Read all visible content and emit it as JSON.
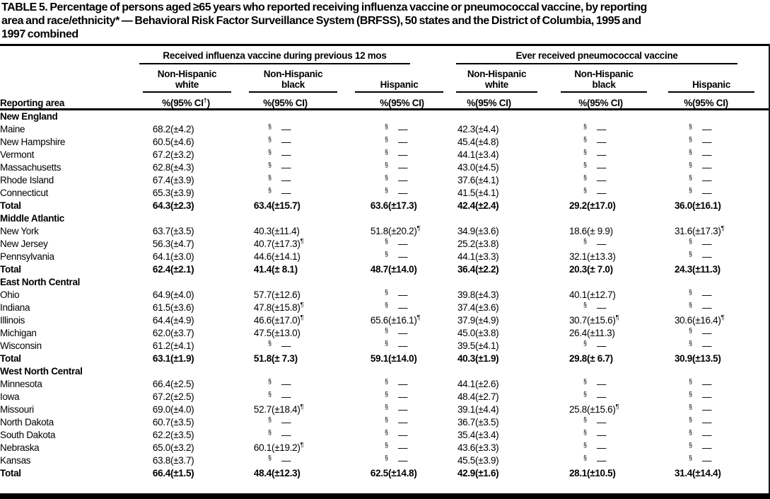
{
  "title_lines": [
    "TABLE 5. Percentage of persons aged ≥65 years who reported receiving influenza vaccine or pneumococcal vaccine, by reporting",
    "area and race/ethnicity* — Behavioral Risk Factor Surveillance System (BRFSS), 50 states and the District of Columbia, 1995 and",
    "1997 combined"
  ],
  "table": {
    "row_header": "Reporting area",
    "span_headers": [
      "Received influenza vaccine during previous 12 mos",
      "Ever received pneumococcal vaccine"
    ],
    "group_headers": [
      "Non-Hispanic\nwhite",
      "Non-Hispanic\nblack",
      "Hispanic",
      "Non-Hispanic\nwhite",
      "Non-Hispanic\nblack",
      "Hispanic"
    ],
    "col_headers": [
      "%",
      "(95% CI†)",
      "%",
      "(95% CI)",
      "%",
      "(95% CI)",
      "%",
      "(95% CI)",
      "%",
      "(95% CI)",
      "%",
      "(95% CI)"
    ],
    "sections": [
      {
        "name": "New England",
        "rows": [
          {
            "area": "Maine",
            "cells": [
              "68.2",
              "(±4.2)",
              "§",
              "—",
              "§",
              "—",
              "42.3",
              "(±4.4)",
              "§",
              "—",
              "§",
              "—"
            ]
          },
          {
            "area": "New Hampshire",
            "cells": [
              "60.5",
              "(±4.6)",
              "§",
              "—",
              "§",
              "—",
              "45.4",
              "(±4.8)",
              "§",
              "—",
              "§",
              "—"
            ]
          },
          {
            "area": "Vermont",
            "cells": [
              "67.2",
              "(±3.2)",
              "§",
              "—",
              "§",
              "—",
              "44.1",
              "(±3.4)",
              "§",
              "—",
              "§",
              "—"
            ]
          },
          {
            "area": "Massachusetts",
            "cells": [
              "62.8",
              "(±4.3)",
              "§",
              "—",
              "§",
              "—",
              "43.0",
              "(±4.5)",
              "§",
              "—",
              "§",
              "—"
            ]
          },
          {
            "area": "Rhode Island",
            "cells": [
              "67.4",
              "(±3.9)",
              "§",
              "—",
              "§",
              "—",
              "37.6",
              "(±4.1)",
              "§",
              "—",
              "§",
              "—"
            ]
          },
          {
            "area": "Connecticut",
            "cells": [
              "65.3",
              "(±3.9)",
              "§",
              "—",
              "§",
              "—",
              "41.5",
              "(±4.1)",
              "§",
              "—",
              "§",
              "—"
            ]
          }
        ],
        "total": {
          "label": "Total",
          "cells": [
            "64.3",
            "(±2.3)",
            "63.4",
            "(±15.7)",
            "63.6",
            "(±17.3)",
            "42.4",
            "(±2.4)",
            "29.2",
            "(±17.0)",
            "36.0",
            "(±16.1)"
          ]
        }
      },
      {
        "name": "Middle Atlantic",
        "rows": [
          {
            "area": "New York",
            "cells": [
              "63.7",
              "(±3.5)",
              "40.3",
              "(±11.4)",
              "51.8",
              "(±20.2)¶",
              "34.9",
              "(±3.6)",
              "18.6",
              "(± 9.9)",
              "31.6",
              "(±17.3)¶"
            ]
          },
          {
            "area": "New Jersey",
            "cells": [
              "56.3",
              "(±4.7)",
              "40.7",
              "(±17.3)¶",
              "§",
              "—",
              "25.2",
              "(±3.8)",
              "§",
              "—",
              "§",
              "—"
            ]
          },
          {
            "area": "Pennsylvania",
            "cells": [
              "64.1",
              "(±3.0)",
              "44.6",
              "(±14.1)",
              "§",
              "—",
              "44.1",
              "(±3.3)",
              "32.1",
              "(±13.3)",
              "§",
              "—"
            ]
          }
        ],
        "total": {
          "label": "Total",
          "cells": [
            "62.4",
            "(±2.1)",
            "41.4",
            "(± 8.1)",
            "48.7",
            "(±14.0)",
            "36.4",
            "(±2.2)",
            "20.3",
            "(± 7.0)",
            "24.3",
            "(±11.3)"
          ]
        }
      },
      {
        "name": "East North Central",
        "rows": [
          {
            "area": "Ohio",
            "cells": [
              "64.9",
              "(±4.0)",
              "57.7",
              "(±12.6)",
              "§",
              "—",
              "39.8",
              "(±4.3)",
              "40.1",
              "(±12.7)",
              "§",
              "—"
            ]
          },
          {
            "area": "Indiana",
            "cells": [
              "61.5",
              "(±3.6)",
              "47.8",
              "(±15.8)¶",
              "§",
              "—",
              "37.4",
              "(±3.6)",
              "§",
              "—",
              "§",
              "—"
            ]
          },
          {
            "area": "Illinois",
            "cells": [
              "64.4",
              "(±4.9)",
              "46.6",
              "(±17.0)¶",
              "65.6",
              "(±16.1)¶",
              "37.9",
              "(±4.9)",
              "30.7",
              "(±15.6)¶",
              "30.6",
              "(±16.4)¶"
            ]
          },
          {
            "area": "Michigan",
            "cells": [
              "62.0",
              "(±3.7)",
              "47.5",
              "(±13.0)",
              "§",
              "—",
              "45.0",
              "(±3.8)",
              "26.4",
              "(±11.3)",
              "§",
              "—"
            ]
          },
          {
            "area": "Wisconsin",
            "cells": [
              "61.2",
              "(±4.1)",
              "§",
              "—",
              "§",
              "—",
              "39.5",
              "(±4.1)",
              "§",
              "—",
              "§",
              "—"
            ]
          }
        ],
        "total": {
          "label": "Total",
          "cells": [
            "63.1",
            "(±1.9)",
            "51.8",
            "(± 7.3)",
            "59.1",
            "(±14.0)",
            "40.3",
            "(±1.9)",
            "29.8",
            "(± 6.7)",
            "30.9",
            "(±13.5)"
          ]
        }
      },
      {
        "name": "West North Central",
        "rows": [
          {
            "area": "Minnesota",
            "cells": [
              "66.4",
              "(±2.5)",
              "§",
              "—",
              "§",
              "—",
              "44.1",
              "(±2.6)",
              "§",
              "—",
              "§",
              "—"
            ]
          },
          {
            "area": "Iowa",
            "cells": [
              "67.2",
              "(±2.5)",
              "§",
              "—",
              "§",
              "—",
              "48.4",
              "(±2.7)",
              "§",
              "—",
              "§",
              "—"
            ]
          },
          {
            "area": "Missouri",
            "cells": [
              "69.0",
              "(±4.0)",
              "52.7",
              "(±18.4)¶",
              "§",
              "—",
              "39.1",
              "(±4.4)",
              "25.8",
              "(±15.6)¶",
              "§",
              "—"
            ]
          },
          {
            "area": "North Dakota",
            "cells": [
              "60.7",
              "(±3.5)",
              "§",
              "—",
              "§",
              "—",
              "36.7",
              "(±3.5)",
              "§",
              "—",
              "§",
              "—"
            ]
          },
          {
            "area": "South Dakota",
            "cells": [
              "62.2",
              "(±3.5)",
              "§",
              "—",
              "§",
              "—",
              "35.4",
              "(±3.4)",
              "§",
              "—",
              "§",
              "—"
            ]
          },
          {
            "area": "Nebraska",
            "cells": [
              "65.0",
              "(±3.2)",
              "60.1",
              "(±19.2)¶",
              "§",
              "—",
              "43.6",
              "(±3.3)",
              "§",
              "—",
              "§",
              "—"
            ]
          },
          {
            "area": "Kansas",
            "cells": [
              "63.8",
              "(±3.7)",
              "§",
              "—",
              "§",
              "—",
              "45.5",
              "(±3.9)",
              "§",
              "—",
              "§",
              "—"
            ]
          }
        ],
        "total": {
          "label": "Total",
          "cells": [
            "66.4",
            "(±1.5)",
            "48.4",
            "(±12.3)",
            "62.5",
            "(±14.8)",
            "42.9",
            "(±1.6)",
            "28.1",
            "(±10.5)",
            "31.4",
            "(±14.4)"
          ]
        }
      }
    ]
  }
}
